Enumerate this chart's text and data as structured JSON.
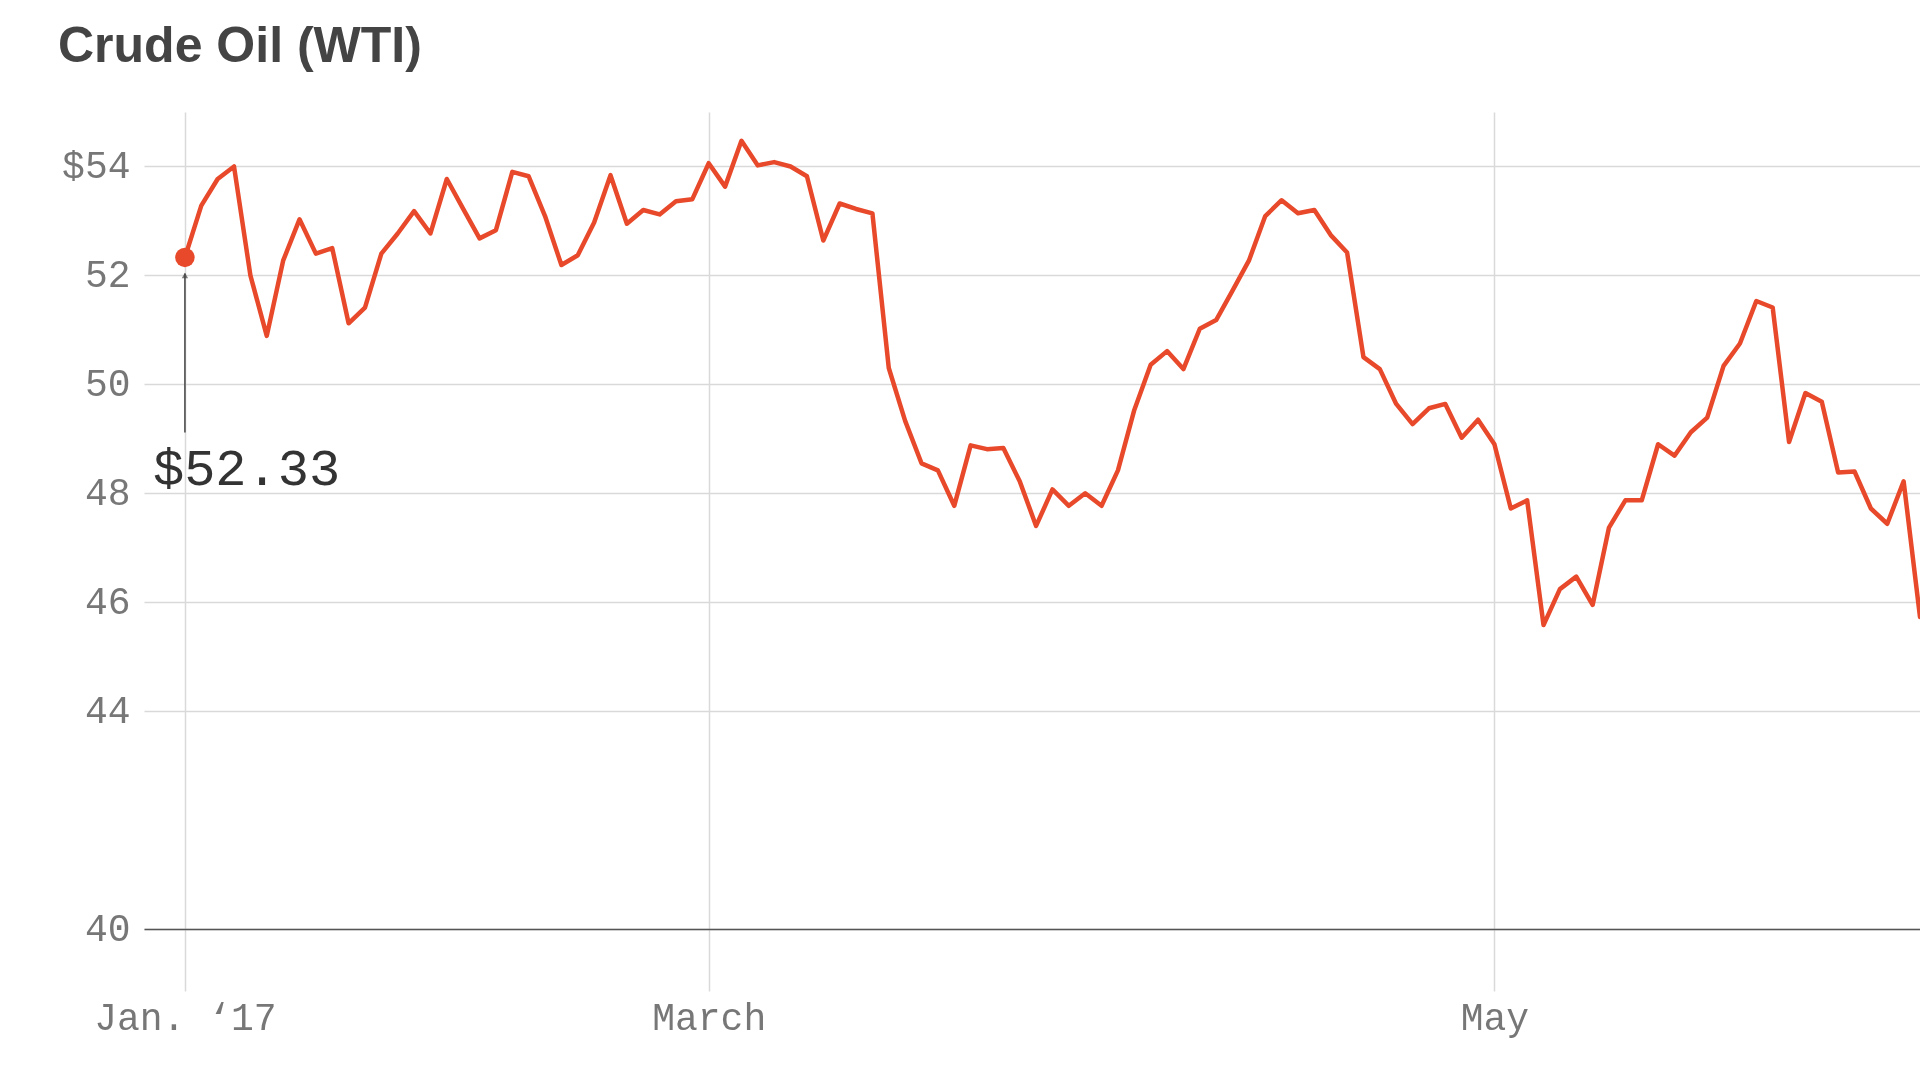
{
  "chart_data": {
    "type": "line",
    "title": "Crude Oil (WTI)",
    "categories": [
      "Jan. ‘17",
      null,
      null,
      null,
      null,
      null,
      null,
      null,
      null,
      null,
      null,
      null,
      null,
      null,
      null,
      null,
      null,
      null,
      null,
      null,
      null,
      null,
      null,
      null,
      null,
      null,
      null,
      null,
      null,
      null,
      null,
      null,
      "March",
      null,
      null,
      null,
      null,
      null,
      null,
      null,
      null,
      null,
      null,
      null,
      null,
      null,
      null,
      null,
      null,
      null,
      null,
      null,
      null,
      null,
      null,
      null,
      null,
      null,
      null,
      null,
      null,
      null,
      null,
      null,
      null,
      null,
      null,
      null,
      null,
      null,
      null,
      null,
      null,
      null,
      null,
      null,
      null,
      null,
      null,
      null,
      "May",
      null,
      null,
      null,
      null,
      null,
      null,
      null,
      null,
      null,
      null,
      null,
      null,
      null,
      null,
      null,
      null,
      null,
      null,
      null,
      null,
      null,
      null,
      null,
      null,
      null,
      null
    ],
    "series": [
      {
        "color": "#e8492a",
        "values": [
          52.33,
          53.28,
          53.77,
          54.0,
          52.0,
          50.89,
          52.27,
          53.03,
          52.4,
          52.5,
          51.12,
          51.41,
          52.4,
          52.77,
          53.18,
          52.77,
          53.77,
          53.22,
          52.68,
          52.83,
          53.9,
          53.82,
          53.09,
          52.19,
          52.37,
          52.97,
          53.84,
          52.95,
          53.2,
          53.12,
          53.36,
          53.4,
          54.06,
          53.63,
          54.47,
          54.02,
          54.08,
          54.0,
          53.82,
          52.64,
          53.32,
          53.22,
          53.14,
          50.3,
          49.33,
          48.55,
          48.42,
          47.77,
          48.88,
          48.81,
          48.83,
          48.22,
          47.4,
          48.07,
          47.77,
          48.0,
          47.77,
          48.42,
          49.53,
          50.36,
          50.61,
          50.28,
          51.02,
          51.18,
          51.72,
          52.27,
          53.09,
          53.38,
          53.14,
          53.2,
          52.74,
          52.42,
          50.5,
          50.28,
          49.64,
          49.27,
          49.56,
          49.64,
          49.02,
          49.35,
          48.9,
          47.72,
          47.87,
          45.58,
          46.24,
          46.47,
          45.95,
          47.37,
          47.87,
          47.87,
          48.9,
          48.69,
          49.12,
          49.39,
          50.34,
          50.75,
          51.53,
          51.41,
          48.94,
          49.84,
          49.68,
          48.38,
          48.4,
          47.72,
          47.44,
          48.22,
          45.73
        ]
      }
    ],
    "ylim": [
      40,
      55
    ],
    "yticks": [
      40,
      44,
      46,
      48,
      50,
      52,
      {
        "value": 54,
        "label": "$54"
      }
    ],
    "grid": true,
    "annotations": [
      "$52.33"
    ]
  }
}
